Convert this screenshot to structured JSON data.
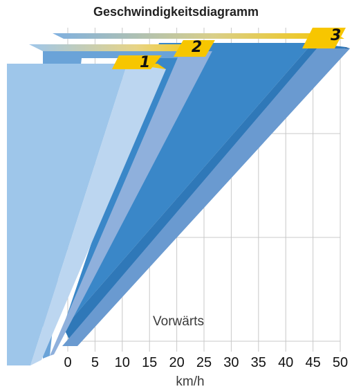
{
  "chart_data": {
    "type": "area",
    "title": "Geschwindigkeitsdiagramm",
    "xlabel": "km/h",
    "xlim": [
      0,
      50
    ],
    "x_ticks": [
      "0",
      "5",
      "10",
      "15",
      "20",
      "25",
      "30",
      "35",
      "40",
      "45",
      "50"
    ],
    "annotation": "Vorwärts",
    "grid": true,
    "series": [
      {
        "name": "1",
        "speed_max": 17
      },
      {
        "name": "2",
        "speed_max": 26
      },
      {
        "name": "3",
        "speed_max": 50
      }
    ],
    "colors": {
      "gear1": "#9ec6ea",
      "gear2": "#6aa3d8",
      "gear3": "#3a87c8",
      "gear3_edge": "#6a9ad0",
      "badge": "#f7c600",
      "grid": "#c8c8c8"
    }
  }
}
